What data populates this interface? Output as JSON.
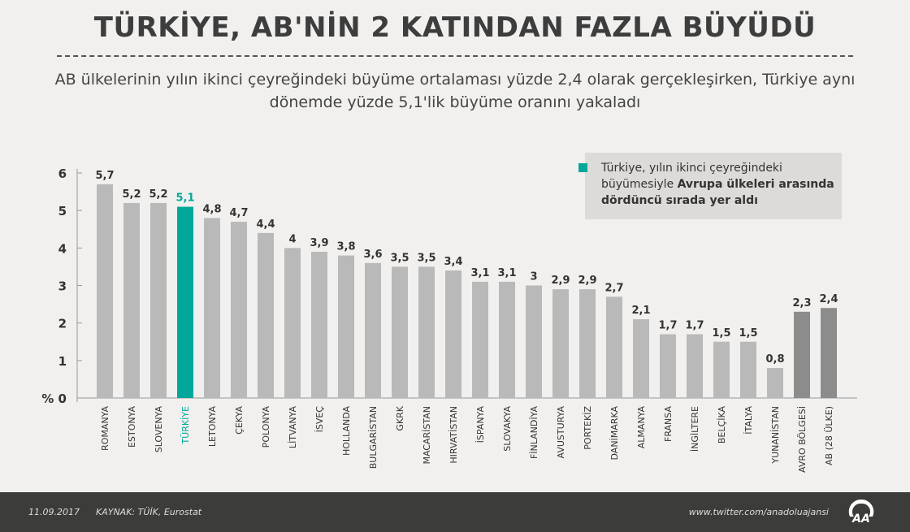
{
  "title": "TÜRKİYE, AB'NİN 2 KATINDAN FAZLA BÜYÜDÜ",
  "subtitle": "AB ülkelerinin yılın ikinci çeyreğindeki büyüme ortalaması yüzde 2,4 olarak gerçekleşirken, Türkiye aynı dönemde yüzde 5,1'lik büyüme oranını yakaladı",
  "legend": {
    "text_plain": "Türkiye, yılın ikinci çeyreğindeki büyümesiyle ",
    "text_bold": "Avrupa ülkeleri arasında dördüncü sırada yer aldı",
    "color": "#00a79a"
  },
  "chart_data": {
    "type": "bar",
    "ylabel": "%",
    "ylim": [
      0,
      6
    ],
    "yticks": [
      "% 0",
      "1",
      "2",
      "3",
      "4",
      "5",
      "6"
    ],
    "grid": false,
    "categories": [
      "ROMANYA",
      "ESTONYA",
      "SLOVENYA",
      "TÜRKİYE",
      "LETONYA",
      "ÇEKYA",
      "POLONYA",
      "LİTVANYA",
      "İSVEÇ",
      "HOLLANDA",
      "BULGARİSTAN",
      "GKRK",
      "MACARİSTAN",
      "HIRVATİSTAN",
      "İSPANYA",
      "SLOVAKYA",
      "FİNLANDİYA",
      "AVUSTURYA",
      "PORTEKİZ",
      "DANİMARKA",
      "ALMANYA",
      "FRANSA",
      "İNGİLTERE",
      "BELÇİKA",
      "İTALYA",
      "YUNANİSTAN",
      "AVRO BÖLGESİ",
      "AB (28 ÜLKE)"
    ],
    "values": [
      5.7,
      5.2,
      5.2,
      5.1,
      4.8,
      4.7,
      4.4,
      4,
      3.9,
      3.8,
      3.6,
      3.5,
      3.5,
      3.4,
      3.1,
      3.1,
      3,
      2.9,
      2.9,
      2.7,
      2.1,
      1.7,
      1.7,
      1.5,
      1.5,
      0.8,
      2.3,
      2.4
    ],
    "value_labels": [
      "5,7",
      "5,2",
      "5,2",
      "5,1",
      "4,8",
      "4,7",
      "4,4",
      "4",
      "3,9",
      "3,8",
      "3,6",
      "3,5",
      "3,5",
      "3,4",
      "3,1",
      "3,1",
      "3",
      "2,9",
      "2,9",
      "2,7",
      "2,1",
      "1,7",
      "1,7",
      "1,5",
      "1,5",
      "0,8",
      "2,3",
      "2,4"
    ],
    "colors": {
      "default": "#b9b9b9",
      "highlight": "#00a79a",
      "aggregate": "#8c8c8c",
      "highlight_index": 3,
      "aggregate_indices": [
        26,
        27
      ]
    }
  },
  "footer": {
    "date": "11.09.2017",
    "source": "KAYNAK: TÜİK, Eurostat",
    "twitter": "www.twitter.com/anadoluajansi",
    "logo": "AA"
  }
}
